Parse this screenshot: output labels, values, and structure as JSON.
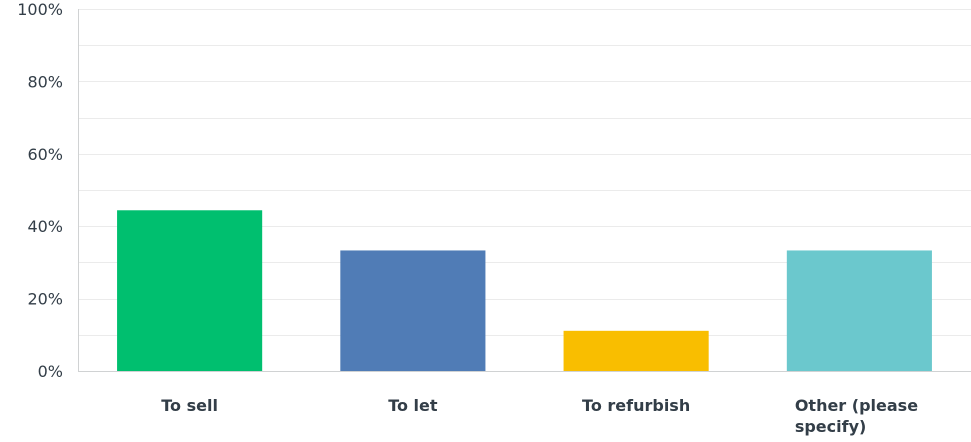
{
  "chart_data": {
    "type": "bar",
    "title": "",
    "xlabel": "",
    "ylabel": "",
    "ylim": [
      0,
      100
    ],
    "y_ticks": [
      0,
      20,
      40,
      60,
      80,
      100
    ],
    "y_tick_labels": [
      "0%",
      "20%",
      "40%",
      "60%",
      "80%",
      "100%"
    ],
    "minor_gridlines": [
      10,
      30,
      50,
      70,
      90
    ],
    "grid": true,
    "legend": "none",
    "categories": [
      {
        "lines": [
          "To sell"
        ]
      },
      {
        "lines": [
          "To let"
        ]
      },
      {
        "lines": [
          "To refurbish"
        ]
      },
      {
        "lines": [
          "Other (please",
          "specify)"
        ]
      }
    ],
    "values": [
      44.4,
      33.3,
      11.1,
      33.3
    ],
    "colors": [
      "#00bf6f",
      "#507cb6",
      "#f9be00",
      "#6bc8cd"
    ]
  }
}
